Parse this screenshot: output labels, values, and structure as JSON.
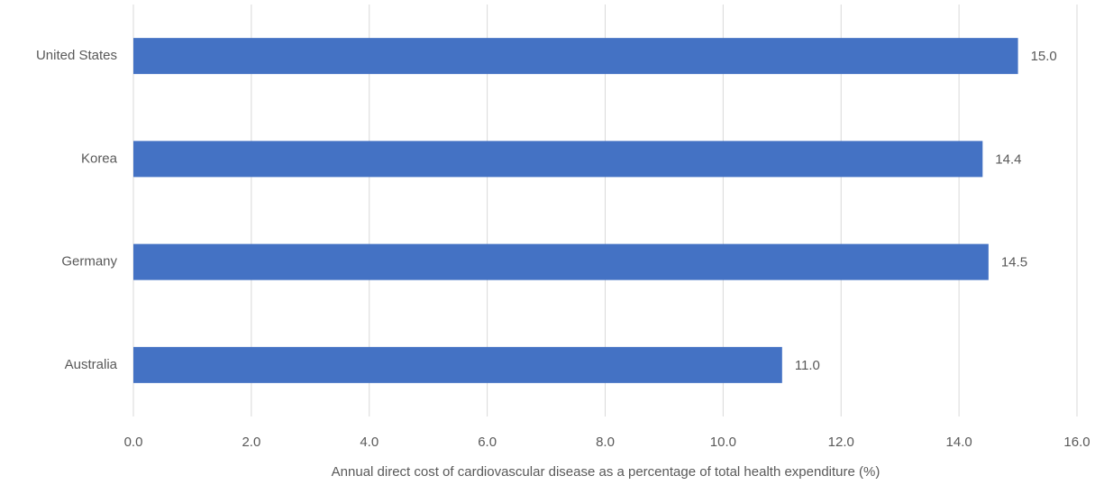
{
  "chart_data": {
    "type": "barh",
    "x_label": "Annual direct cost of cardiovascular disease as a percentage of total health expenditure (%)",
    "categories": [
      "United States",
      "Korea",
      "Germany",
      "Australia"
    ],
    "values": [
      15.0,
      14.4,
      14.5,
      11.0
    ],
    "value_labels": [
      "15.0",
      "14.4",
      "14.5",
      "11.0"
    ],
    "color": "#4472c4",
    "xlim": [
      0,
      16
    ],
    "xticks": [
      {
        "value": 0,
        "label": "0.0"
      },
      {
        "value": 2,
        "label": "2.0"
      },
      {
        "value": 4,
        "label": "4.0"
      },
      {
        "value": 6,
        "label": "6.0"
      },
      {
        "value": 8,
        "label": "8.0"
      },
      {
        "value": 10,
        "label": "10.0"
      },
      {
        "value": 12,
        "label": "12.0"
      },
      {
        "value": 14,
        "label": "14.0"
      },
      {
        "value": 16,
        "label": "16.0"
      }
    ],
    "grid": true
  }
}
